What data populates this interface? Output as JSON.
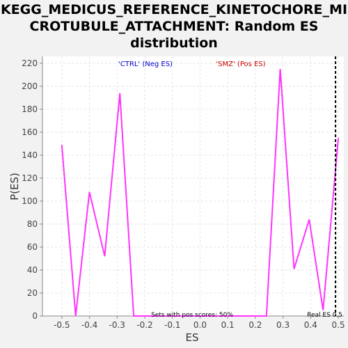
{
  "title_lines": [
    "KEGG_MEDICUS_REFERENCE_KINETOCHORE_MI",
    "CROTUBULE_ATTACHMENT: Random ES",
    "distribution"
  ],
  "colors": {
    "line": "#ff33ff",
    "ctrl": "#0000cc",
    "smz": "#cc0000",
    "marker": "#000000"
  },
  "chart_data": {
    "type": "line",
    "title": "KEGG_MEDICUS_REFERENCE_KINETOCHORE_MICROTUBULE_ATTACHMENT: Random ES distribution",
    "xlabel": "ES",
    "ylabel": "P(ES)",
    "xlim": [
      -0.57,
      0.52
    ],
    "ylim": [
      0,
      226
    ],
    "xticks": [
      -0.5,
      -0.4,
      -0.3,
      -0.2,
      -0.1,
      0.0,
      0.1,
      0.2,
      0.3,
      0.4,
      0.5
    ],
    "xtick_labels": [
      "-0.5",
      "-0.4",
      "-0.3",
      "-0.2",
      "-0.1",
      "0.0",
      "0.1",
      "0.2",
      "0.3",
      "0.4",
      "0.5"
    ],
    "yticks": [
      0,
      20,
      40,
      60,
      80,
      100,
      120,
      140,
      160,
      180,
      200,
      220
    ],
    "ytick_labels": [
      "0",
      "20",
      "40",
      "60",
      "80",
      "100",
      "120",
      "140",
      "160",
      "180",
      "200",
      "220"
    ],
    "grid": true,
    "series": [
      {
        "x": [
          -0.5,
          -0.45,
          -0.4,
          -0.345,
          -0.29,
          -0.24,
          0.24,
          0.29,
          0.34,
          0.395,
          0.445,
          0.5
        ],
        "y": [
          149,
          0,
          108,
          52,
          194,
          0,
          0,
          215,
          41,
          84,
          5,
          155
        ]
      }
    ],
    "legend": {
      "neg": "'CTRL' (Neg ES)",
      "pos": "'SMZ' (Pos ES)",
      "placement": "top"
    },
    "annotations": {
      "sets_text": "Sets with pos scores: 50%",
      "real_es_label": "Real ES 0.5",
      "real_es_x": 0.49
    }
  }
}
